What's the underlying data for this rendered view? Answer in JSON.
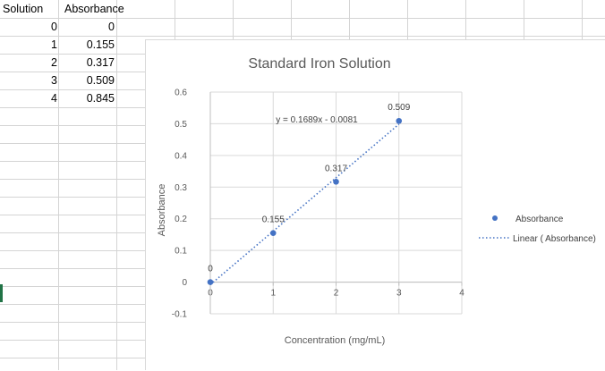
{
  "sheet": {
    "headers": [
      "Solution",
      "Absorbance"
    ],
    "rows": [
      [
        "0",
        "0"
      ],
      [
        "1",
        "0.155"
      ],
      [
        "2",
        "0.317"
      ],
      [
        "3",
        "0.509"
      ],
      [
        "4",
        "0.845"
      ]
    ]
  },
  "chart_data": {
    "type": "scatter",
    "title": "Standard Iron Solution",
    "xlabel": "Concentration (mg/mL)",
    "ylabel": "Absorbance",
    "xlim": [
      0,
      4
    ],
    "ylim": [
      -0.1,
      0.6
    ],
    "x_ticks": [
      "0",
      "1",
      "2",
      "3",
      "4"
    ],
    "y_ticks": [
      "-0.1",
      "0",
      "0.1",
      "0.2",
      "0.3",
      "0.4",
      "0.5",
      "0.6"
    ],
    "grid": true,
    "legend_position": "right",
    "series": [
      {
        "name": "Absorbance",
        "color": "#4472C4",
        "points": [
          {
            "x": 0,
            "y": 0,
            "label": "0"
          },
          {
            "x": 1,
            "y": 0.155,
            "label": "0.155"
          },
          {
            "x": 2,
            "y": 0.317,
            "label": "0.317"
          },
          {
            "x": 3,
            "y": 0.509,
            "label": "0.509"
          }
        ]
      }
    ],
    "trendline": {
      "legend": "Linear ( Absorbance)",
      "type": "linear",
      "slope": 0.1689,
      "intercept": -0.0081,
      "equation": "y = 0.1689x - 0.0081",
      "x_range": [
        0,
        3
      ],
      "style": "dotted",
      "color": "#4472C4"
    }
  }
}
